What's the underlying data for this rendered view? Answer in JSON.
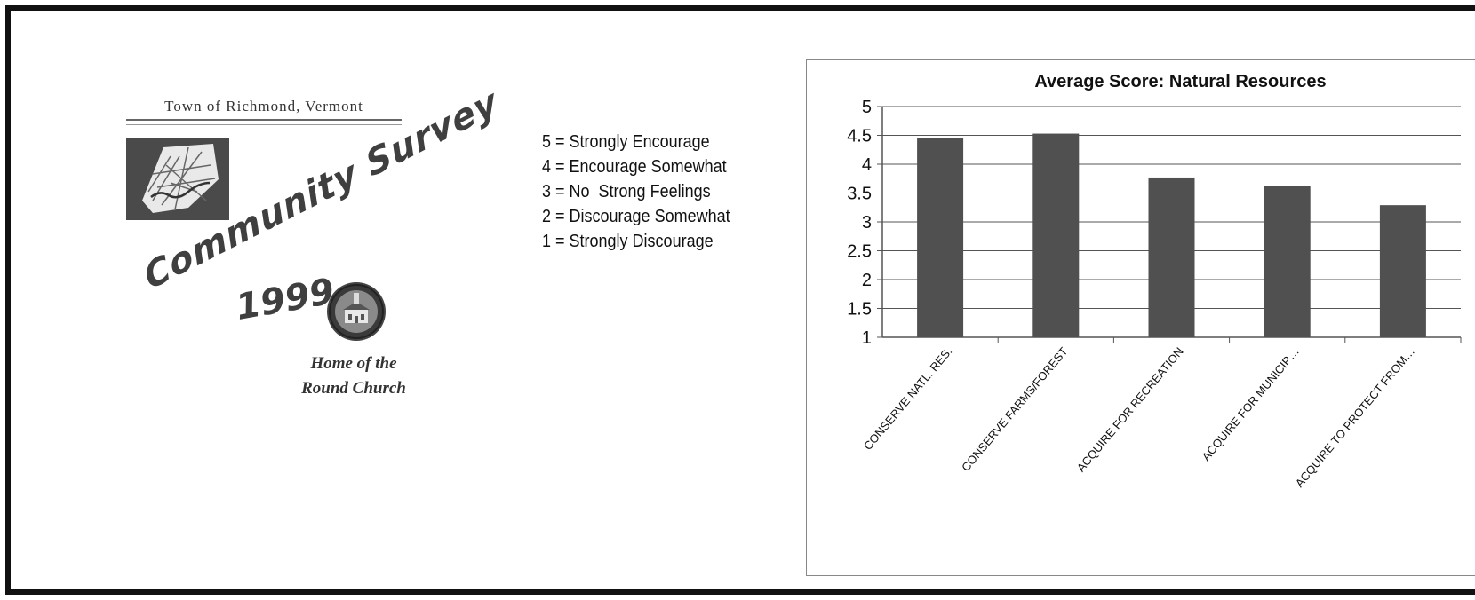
{
  "cover": {
    "town": "Town of Richmond, Vermont",
    "title": "Community Survey",
    "year": "1999",
    "tagline_1": "Home of the",
    "tagline_2": "Round Church"
  },
  "scale_legend": [
    "5 = Strongly Encourage",
    "4 = Encourage Somewhat",
    "3 = No  Strong Feelings",
    "2 = Discourage Somewhat",
    "1 = Strongly Discourage"
  ],
  "colors": {
    "bar": "#505050",
    "grid": "#555555",
    "text": "#111111"
  },
  "chart_data": {
    "type": "bar",
    "title": "Average Score: Natural Resources",
    "categories": [
      "CONSERVE NATL. RES.",
      "CONSERVE FARMS/FOREST",
      "ACQUIRE FOR RECREATION",
      "ACQUIRE FOR MUNICIP…",
      "ACQUIRE TO PROTECT FROM…"
    ],
    "values": [
      4.45,
      4.53,
      3.77,
      3.63,
      3.29
    ],
    "ylim": [
      1,
      5
    ],
    "yticks": [
      "1",
      "1.5",
      "2",
      "2.5",
      "3",
      "3.5",
      "4",
      "4.5",
      "5"
    ],
    "grid": true,
    "legend": "none"
  }
}
